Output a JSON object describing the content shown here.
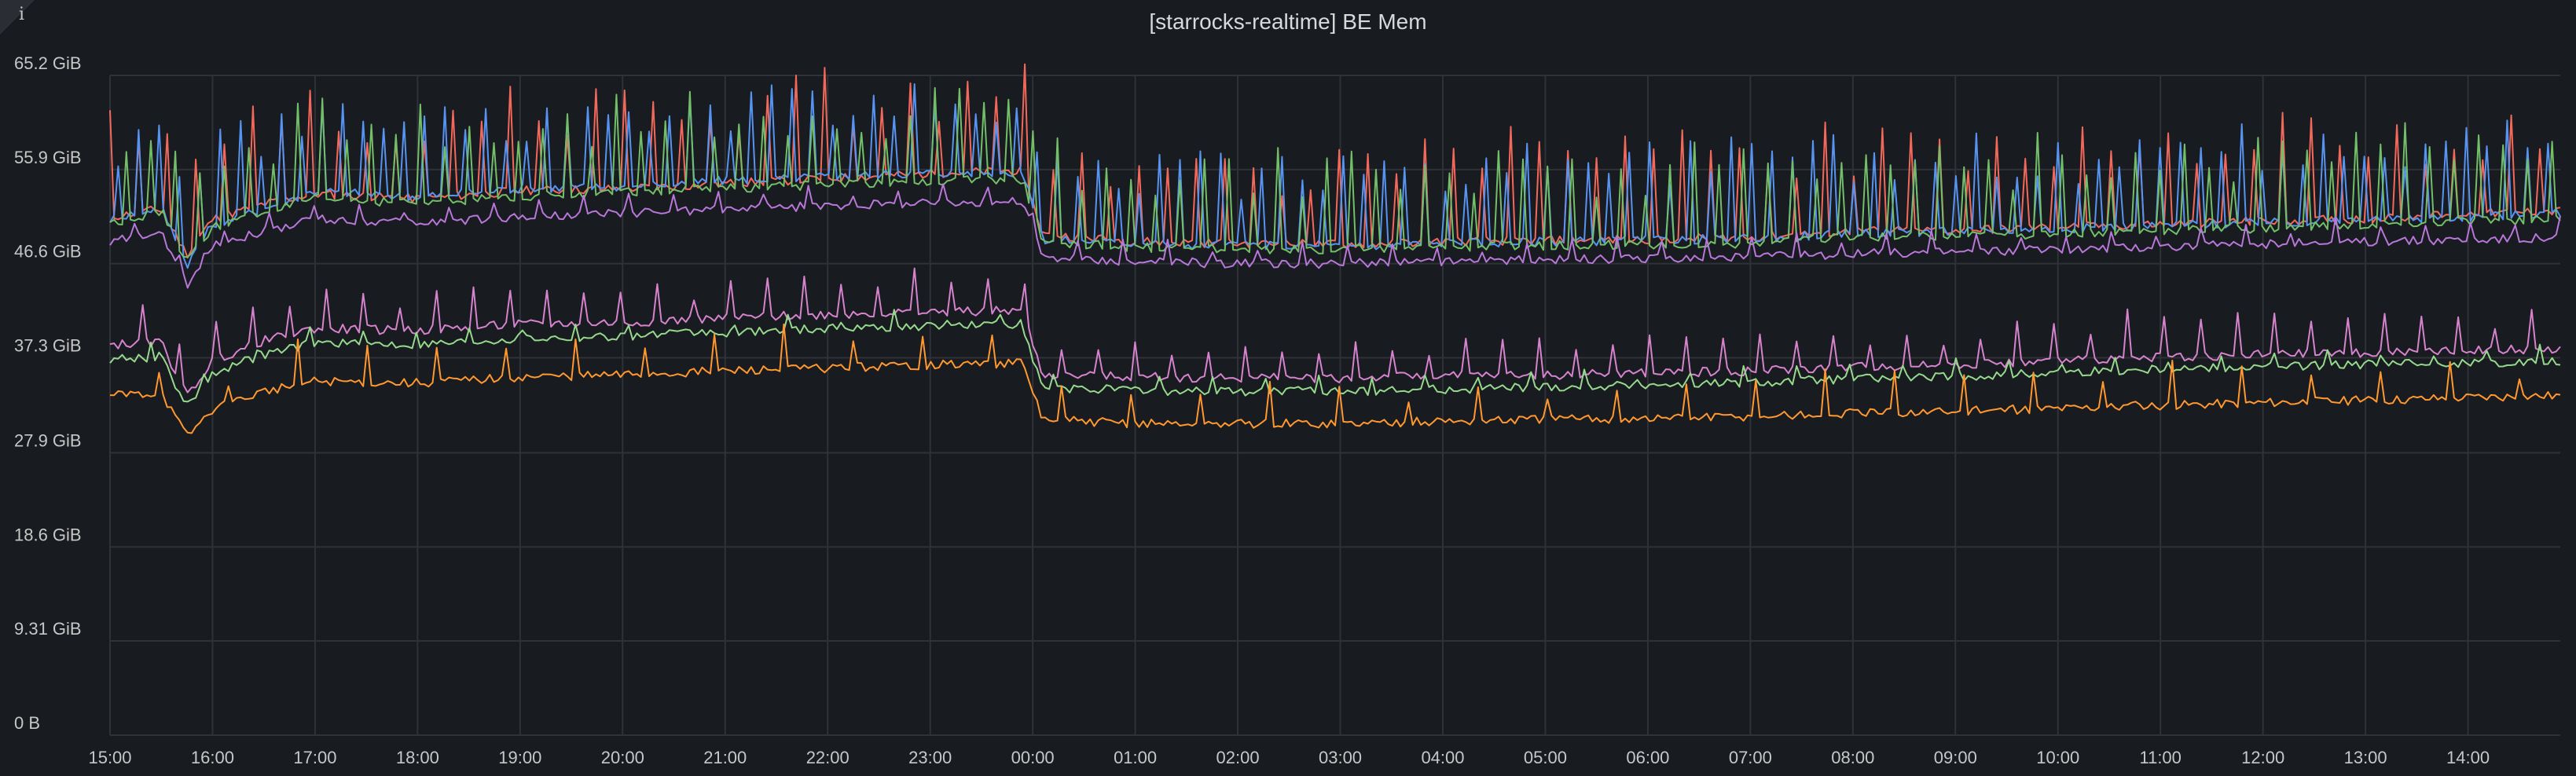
{
  "panel": {
    "title": "[starrocks-realtime] BE Mem",
    "info_icon": "info-icon"
  },
  "chart_data": {
    "type": "line",
    "title": "[starrocks-realtime] BE Mem",
    "ylabel": "",
    "xlabel": "",
    "unit": "GiB",
    "ylim": [
      0,
      65.2
    ],
    "xlim_hours": [
      15.0,
      38.9
    ],
    "y_ticks": [
      {
        "v": 0,
        "label": "0 B"
      },
      {
        "v": 9.31,
        "label": "9.31 GiB"
      },
      {
        "v": 18.6,
        "label": "18.6 GiB"
      },
      {
        "v": 27.9,
        "label": "27.9 GiB"
      },
      {
        "v": 37.3,
        "label": "37.3 GiB"
      },
      {
        "v": 46.6,
        "label": "46.6 GiB"
      },
      {
        "v": 55.9,
        "label": "55.9 GiB"
      },
      {
        "v": 65.2,
        "label": "65.2 GiB"
      }
    ],
    "x_ticks": [
      {
        "v": 15,
        "label": "15:00"
      },
      {
        "v": 16,
        "label": "16:00"
      },
      {
        "v": 17,
        "label": "17:00"
      },
      {
        "v": 18,
        "label": "18:00"
      },
      {
        "v": 19,
        "label": "19:00"
      },
      {
        "v": 20,
        "label": "20:00"
      },
      {
        "v": 21,
        "label": "21:00"
      },
      {
        "v": 22,
        "label": "22:00"
      },
      {
        "v": 23,
        "label": "23:00"
      },
      {
        "v": 24,
        "label": "00:00"
      },
      {
        "v": 25,
        "label": "01:00"
      },
      {
        "v": 26,
        "label": "02:00"
      },
      {
        "v": 27,
        "label": "03:00"
      },
      {
        "v": 28,
        "label": "04:00"
      },
      {
        "v": 29,
        "label": "05:00"
      },
      {
        "v": 30,
        "label": "06:00"
      },
      {
        "v": 31,
        "label": "07:00"
      },
      {
        "v": 32,
        "label": "08:00"
      },
      {
        "v": 33,
        "label": "09:00"
      },
      {
        "v": 34,
        "label": "10:00"
      },
      {
        "v": 35,
        "label": "11:00"
      },
      {
        "v": 36,
        "label": "12:00"
      },
      {
        "v": 37,
        "label": "13:00"
      },
      {
        "v": 38,
        "label": "14:00"
      }
    ],
    "x_times": [
      15.0,
      15.5,
      15.75,
      16.0,
      16.5,
      17.0,
      18.0,
      19.0,
      20.0,
      21.0,
      22.0,
      23.0,
      23.9,
      24.1,
      25.0,
      26.0,
      27.0,
      28.0,
      29.0,
      30.0,
      31.0,
      32.0,
      33.0,
      34.0,
      35.0,
      36.0,
      37.0,
      38.0,
      38.9
    ],
    "series": [
      {
        "color": "#f2695c",
        "values": [
          51.2,
          52.0,
          47.5,
          51.0,
          52.5,
          53.5,
          53.0,
          53.8,
          54.0,
          54.5,
          55.0,
          55.5,
          55.8,
          49.5,
          48.8,
          48.6,
          48.5,
          48.8,
          48.9,
          49.0,
          49.2,
          49.8,
          49.9,
          50.2,
          50.5,
          50.8,
          51.0,
          51.5,
          51.8
        ],
        "spike": 10,
        "spike_step": 7
      },
      {
        "color": "#5794f2",
        "values": [
          51.0,
          52.2,
          46.5,
          50.5,
          52.0,
          53.8,
          53.2,
          54.0,
          54.2,
          54.8,
          55.2,
          55.6,
          55.6,
          49.0,
          48.6,
          48.4,
          48.3,
          48.6,
          48.8,
          48.9,
          49.1,
          49.6,
          49.8,
          50.0,
          50.4,
          50.6,
          50.9,
          51.2,
          51.6
        ],
        "spike": 9,
        "spike_step": 5
      },
      {
        "color": "#73bf69",
        "values": [
          50.6,
          51.8,
          46.8,
          50.2,
          51.6,
          53.0,
          52.6,
          53.2,
          53.6,
          54.0,
          54.4,
          54.8,
          54.9,
          48.8,
          48.2,
          48.0,
          48.0,
          48.2,
          48.4,
          48.5,
          48.6,
          49.2,
          49.3,
          49.6,
          49.9,
          50.1,
          50.4,
          50.8,
          51.0
        ],
        "spike": 9,
        "spike_step": 6
      },
      {
        "color": "#b877d9",
        "values": [
          48.8,
          49.5,
          44.5,
          48.5,
          49.8,
          51.0,
          50.6,
          51.2,
          51.6,
          52.0,
          52.3,
          52.6,
          52.8,
          47.2,
          46.8,
          46.6,
          46.6,
          46.8,
          47.0,
          47.1,
          47.2,
          47.6,
          47.8,
          48.0,
          48.3,
          48.5,
          48.8,
          49.0,
          49.2
        ],
        "spike": 2,
        "spike_step": 11
      },
      {
        "color": "#d683ce",
        "values": [
          38.6,
          38.8,
          33.5,
          37.0,
          39.0,
          40.2,
          40.0,
          40.6,
          40.8,
          41.2,
          41.6,
          41.8,
          42.0,
          35.6,
          35.4,
          35.3,
          35.3,
          35.5,
          35.6,
          35.8,
          36.0,
          36.4,
          36.6,
          37.0,
          37.4,
          37.6,
          37.8,
          38.0,
          38.2
        ],
        "spike": 4,
        "spike_step": 9
      },
      {
        "color": "#96d98d",
        "values": [
          37.2,
          37.4,
          32.5,
          35.8,
          37.6,
          38.8,
          38.6,
          39.2,
          39.4,
          39.8,
          40.2,
          40.4,
          40.6,
          34.2,
          34.0,
          34.0,
          34.0,
          34.2,
          34.4,
          34.6,
          34.8,
          35.2,
          35.4,
          35.8,
          36.2,
          36.4,
          36.6,
          36.8,
          37.0
        ],
        "spike": 1.5,
        "spike_step": 13
      },
      {
        "color": "#ff9830",
        "values": [
          33.6,
          33.8,
          29.5,
          32.2,
          34.0,
          35.0,
          34.8,
          35.4,
          35.6,
          36.0,
          36.3,
          36.6,
          36.8,
          31.2,
          30.8,
          30.8,
          30.8,
          31.0,
          31.2,
          31.3,
          31.5,
          31.8,
          32.0,
          32.3,
          32.6,
          32.9,
          33.1,
          33.4,
          33.6
        ],
        "spike": 4,
        "spike_step": 17
      }
    ]
  }
}
